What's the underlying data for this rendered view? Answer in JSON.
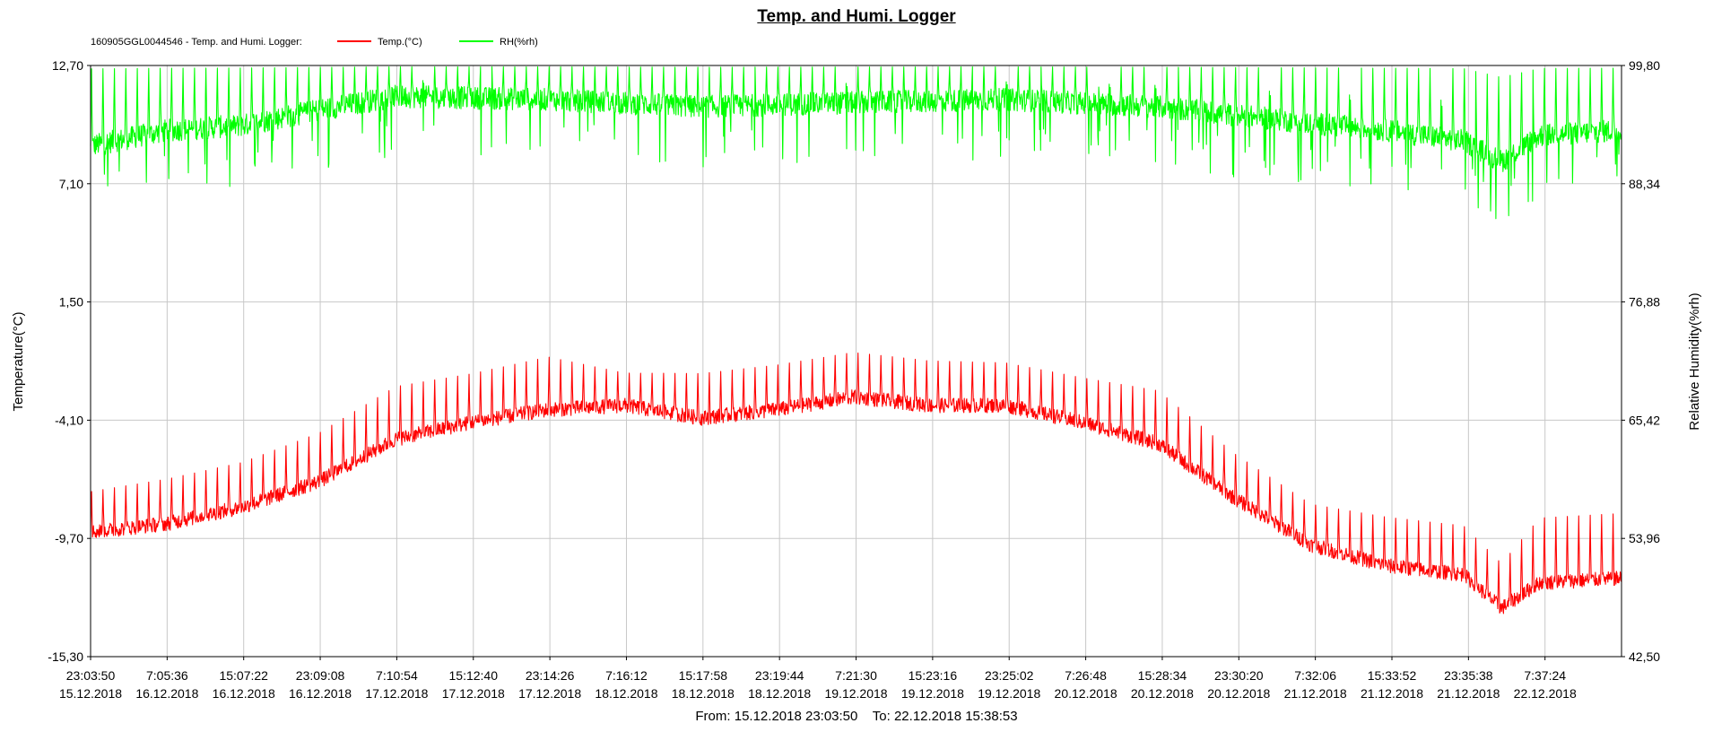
{
  "chart_data": {
    "type": "line",
    "title": "Temp. and Humi. Logger",
    "legend": {
      "placement": "top-left",
      "prefix": "160905GGL0044546 - Temp. and Humi. Logger:"
    },
    "y_left": {
      "label": "Temperature(°C)",
      "min": -15.3,
      "max": 12.7,
      "ticks": [
        "12,70",
        "7,10",
        "1,50",
        "-4,10",
        "-9,70",
        "-15,30"
      ]
    },
    "y_right": {
      "label": "Relative Humidity(%rh)",
      "min": 42.5,
      "max": 99.8,
      "ticks": [
        "99,80",
        "88,34",
        "76,88",
        "65,42",
        "53,96",
        "42,50"
      ]
    },
    "x": {
      "start": "15.12.2018 23:03:50",
      "end": "22.12.2018 15:38:53",
      "tick_times": [
        "23:03:50",
        "7:05:36",
        "15:07:22",
        "23:09:08",
        "7:10:54",
        "15:12:40",
        "23:14:26",
        "7:16:12",
        "15:17:58",
        "23:19:44",
        "7:21:30",
        "15:23:16",
        "23:25:02",
        "7:26:48",
        "15:28:34",
        "23:30:20",
        "7:32:06",
        "15:33:52",
        "23:35:38",
        "7:37:24"
      ],
      "tick_dates": [
        "15.12.2018",
        "16.12.2018",
        "16.12.2018",
        "16.12.2018",
        "17.12.2018",
        "17.12.2018",
        "17.12.2018",
        "18.12.2018",
        "18.12.2018",
        "18.12.2018",
        "19.12.2018",
        "19.12.2018",
        "19.12.2018",
        "20.12.2018",
        "20.12.2018",
        "20.12.2018",
        "21.12.2018",
        "21.12.2018",
        "21.12.2018",
        "22.12.2018"
      ]
    },
    "grid": true,
    "series": [
      {
        "name": "Temp.(°C)",
        "axis": "left",
        "color": "#ff0000",
        "x_hours_keypoints": [
          0,
          8,
          16,
          24,
          32,
          40,
          48,
          56,
          64,
          72,
          80,
          88,
          96,
          104,
          112,
          120,
          128,
          136,
          144,
          148,
          152,
          160
        ],
        "baseline": [
          -9.4,
          -9.0,
          -8.2,
          -7.0,
          -5.0,
          -4.2,
          -3.6,
          -3.4,
          -4.0,
          -3.6,
          -3.0,
          -3.4,
          -3.4,
          -4.2,
          -5.2,
          -7.8,
          -10.0,
          -11.0,
          -11.4,
          -13.0,
          -11.8,
          -11.6
        ],
        "spike_peak": [
          -7.4,
          -6.8,
          -6.0,
          -4.6,
          -2.4,
          -1.8,
          -1.0,
          -1.8,
          -1.8,
          -1.4,
          -0.8,
          -1.2,
          -1.3,
          -2.0,
          -2.6,
          -5.6,
          -8.0,
          -8.6,
          -9.0,
          -10.8,
          -8.6,
          -8.4
        ]
      },
      {
        "name": "RH(%rh)",
        "axis": "right",
        "color": "#00ff00",
        "x_hours_keypoints": [
          0,
          8,
          16,
          24,
          32,
          48,
          64,
          80,
          96,
          112,
          120,
          128,
          136,
          144,
          148,
          152,
          160
        ],
        "baseline": [
          92.0,
          93.5,
          94.0,
          95.5,
          96.8,
          96.5,
          95.8,
          96.2,
          96.5,
          95.8,
          95.0,
          94.2,
          93.5,
          92.5,
          90.5,
          93.0,
          93.5
        ],
        "spike_peak": [
          99.8,
          99.8,
          99.8,
          99.8,
          99.8,
          99.8,
          99.8,
          99.8,
          99.8,
          99.8,
          99.8,
          99.8,
          99.8,
          99.8,
          99.0,
          99.8,
          99.8
        ]
      }
    ]
  },
  "footer": {
    "from_label": "From:",
    "from_value": "15.12.2018 23:03:50",
    "to_label": "To:",
    "to_value": "22.12.2018 15:38:53"
  }
}
